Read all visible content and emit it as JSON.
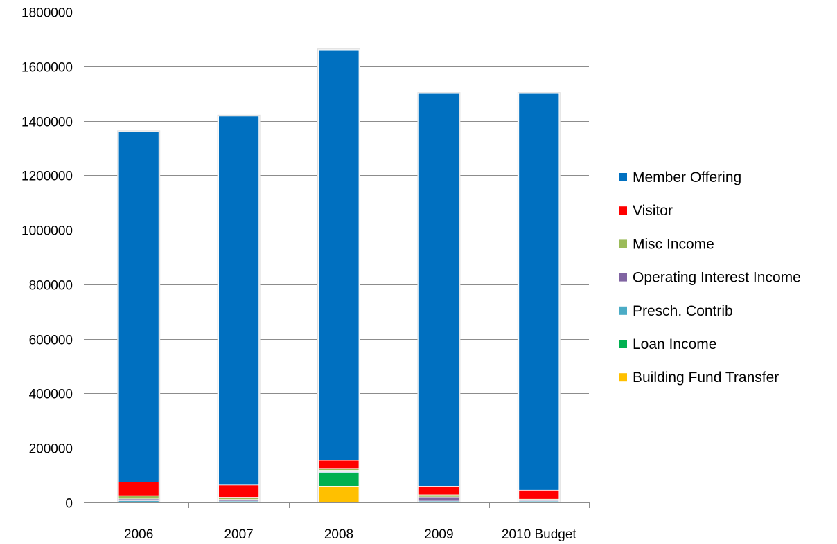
{
  "chart_data": {
    "type": "bar",
    "stacked": true,
    "categories": [
      "2006",
      "2007",
      "2008",
      "2009",
      "2010 Budget"
    ],
    "ylim": [
      0,
      1800000
    ],
    "y_ticks": [
      "0",
      "200000",
      "400000",
      "600000",
      "800000",
      "1000000",
      "1200000",
      "1400000",
      "1600000",
      "1800000"
    ],
    "grid": true,
    "legend_position": "right",
    "series": [
      {
        "name": "Building Fund Transfer",
        "color": "#ffc000",
        "values": [
          0,
          0,
          60000,
          0,
          0
        ]
      },
      {
        "name": "Loan Income",
        "color": "#00b050",
        "values": [
          0,
          0,
          50000,
          0,
          0
        ]
      },
      {
        "name": "Presch. Contrib",
        "color": "#4bacc6",
        "values": [
          6000,
          5000,
          3000,
          5000,
          5000
        ]
      },
      {
        "name": "Operating Interest Income",
        "color": "#8064a2",
        "values": [
          7000,
          6000,
          5000,
          15000,
          3000
        ]
      },
      {
        "name": "Misc Income",
        "color": "#9bbb59",
        "values": [
          12000,
          8000,
          7000,
          8000,
          4000
        ]
      },
      {
        "name": "Visitor",
        "color": "#ff0000",
        "values": [
          50000,
          45000,
          30000,
          32000,
          33000
        ]
      },
      {
        "name": "Member Offering",
        "color": "#0070c0",
        "values": [
          1285000,
          1353000,
          1505000,
          1440000,
          1455000
        ]
      }
    ],
    "legend_order": [
      "Member Offering",
      "Visitor",
      "Misc Income",
      "Operating Interest Income",
      "Presch. Contrib",
      "Loan Income",
      "Building Fund Transfer"
    ]
  }
}
